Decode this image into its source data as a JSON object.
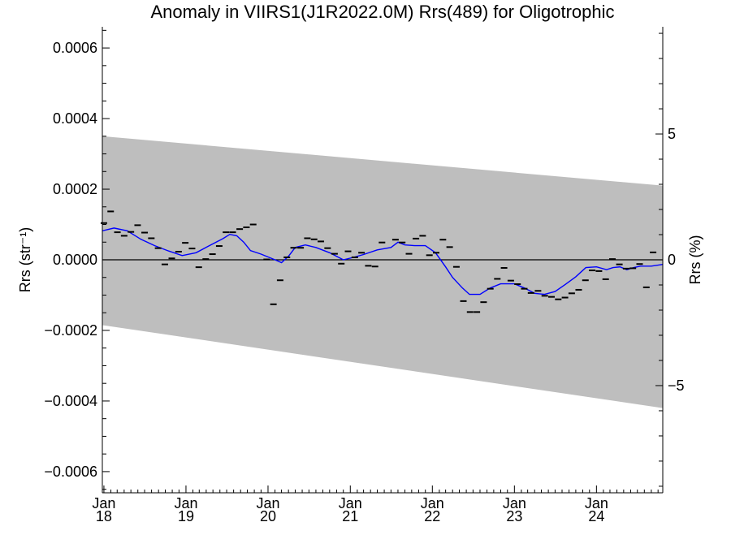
{
  "chart_data": {
    "type": "line",
    "title": "Anomaly in VIIRS1(J1R2022.0M) Rrs(489) for Oligotrophic",
    "ylabel": "Rrs (str⁻¹)",
    "ylabel_right": "Rrs (%)",
    "xlabel": "",
    "xlim": [
      "2017-12-25",
      "2024-10-22"
    ],
    "ylim": [
      -0.00066,
      0.00066
    ],
    "ylim_right": [
      -9.26,
      9.26
    ],
    "x_ticks": [
      {
        "date": "2018-01-01",
        "month": "Jan",
        "year": "18"
      },
      {
        "date": "2019-01-01",
        "month": "Jan",
        "year": "19"
      },
      {
        "date": "2020-01-01",
        "month": "Jan",
        "year": "20"
      },
      {
        "date": "2021-01-01",
        "month": "Jan",
        "year": "21"
      },
      {
        "date": "2022-01-01",
        "month": "Jan",
        "year": "22"
      },
      {
        "date": "2023-01-01",
        "month": "Jan",
        "year": "23"
      },
      {
        "date": "2024-01-01",
        "month": "Jan",
        "year": "24"
      }
    ],
    "y_ticks": [
      {
        "value": 0.0006,
        "label": "0.0006"
      },
      {
        "value": 0.0004,
        "label": "0.0004"
      },
      {
        "value": 0.0002,
        "label": "0.0002"
      },
      {
        "value": 0.0,
        "label": "0.0000"
      },
      {
        "value": -0.0002,
        "label": "−0.0002"
      },
      {
        "value": -0.0004,
        "label": "−0.0004"
      },
      {
        "value": -0.0006,
        "label": "−0.0006"
      }
    ],
    "y_ticks_right": [
      {
        "value": 5,
        "label": "5"
      },
      {
        "value": 0,
        "label": "0"
      },
      {
        "value": -5,
        "label": "−5"
      }
    ],
    "band": {
      "start": {
        "x": "2017-12-25",
        "upper": 0.00035,
        "lower": -0.000185
      },
      "end": {
        "x": "2024-10-22",
        "upper": 0.00021,
        "lower": -0.00042
      },
      "color": "#bebebe"
    },
    "zero_line": 0,
    "colors": {
      "band": "#bebebe",
      "smoothed": "#0000ff",
      "points": "#000000",
      "axes": "#000000"
    },
    "series": [
      {
        "style": "dash-markers",
        "x": [
          "2018-01-01",
          "2018-01-31",
          "2018-03-02",
          "2018-04-01",
          "2018-05-01",
          "2018-05-31",
          "2018-07-01",
          "2018-07-31",
          "2018-08-30",
          "2018-09-29",
          "2018-10-30",
          "2018-11-29",
          "2018-12-29",
          "2019-01-28",
          "2019-02-27",
          "2019-03-30",
          "2019-04-29",
          "2019-05-29",
          "2019-06-28",
          "2019-07-28",
          "2019-08-28",
          "2019-09-27",
          "2019-10-27",
          "2019-11-26",
          "2019-12-26",
          "2020-01-25",
          "2020-02-24",
          "2020-03-25",
          "2020-04-24",
          "2020-05-25",
          "2020-06-24",
          "2020-07-24",
          "2020-08-23",
          "2020-09-22",
          "2020-10-23",
          "2020-11-22",
          "2020-12-22",
          "2021-01-21",
          "2021-02-20",
          "2021-03-22",
          "2021-04-21",
          "2021-05-22",
          "2021-06-21",
          "2021-07-21",
          "2021-08-20",
          "2021-09-19",
          "2021-10-20",
          "2021-11-19",
          "2021-12-19",
          "2022-01-18",
          "2022-02-17",
          "2022-03-19",
          "2022-04-18",
          "2022-05-19",
          "2022-06-18",
          "2022-07-18",
          "2022-08-17",
          "2022-09-16",
          "2022-10-17",
          "2022-11-16",
          "2022-12-16",
          "2023-01-15",
          "2023-02-14",
          "2023-03-16",
          "2023-04-16",
          "2023-05-16",
          "2023-06-15",
          "2023-07-15",
          "2023-08-14",
          "2023-09-13",
          "2023-10-14",
          "2023-11-13",
          "2023-12-13",
          "2024-01-12",
          "2024-02-11",
          "2024-03-12",
          "2024-04-12",
          "2024-05-12",
          "2024-06-11",
          "2024-07-11",
          "2024-08-10",
          "2024-09-09",
          "2024-10-10"
        ],
        "values": [
          0.000104,
          0.000137,
          7.8e-05,
          6.8e-05,
          7.9e-05,
          9.8e-05,
          7.7e-05,
          6.1e-05,
          3.3e-05,
          -1.3e-05,
          4e-06,
          2.3e-05,
          4.8e-05,
          3.2e-05,
          -2.1e-05,
          2e-06,
          1.6e-05,
          3.9e-05,
          7.8e-05,
          7.8e-05,
          8.7e-05,
          9.2e-05,
          0.0001,
          null,
          1e-06,
          -0.000126,
          -5.8e-05,
          7e-06,
          3.4e-05,
          3.4e-05,
          6.1e-05,
          5.8e-05,
          5.2e-05,
          3.3e-05,
          1.7e-05,
          -1.1e-05,
          2.4e-05,
          7e-06,
          2e-05,
          -1.7e-05,
          -1.9e-05,
          4.9e-05,
          null,
          5.7e-05,
          4.9e-05,
          1.7e-05,
          6e-05,
          6.8e-05,
          1.3e-05,
          2e-05,
          5.7e-05,
          3.6e-05,
          -2e-05,
          -0.000117,
          -0.000148,
          -0.000148,
          -0.00012,
          -8.2e-05,
          -5.4e-05,
          -2.3e-05,
          -5.9e-05,
          -6.9e-05,
          -8.2e-05,
          -9.4e-05,
          -8.8e-05,
          -0.000102,
          -0.000105,
          -0.000112,
          -0.000107,
          -9.5e-05,
          -8.5e-05,
          -5.8e-05,
          -3e-05,
          -3.2e-05,
          -5.5e-05,
          2e-06,
          -1.3e-05,
          -2.5e-05,
          -2.4e-05,
          -1.2e-05,
          -7.8e-05,
          2.1e-05,
          null
        ]
      },
      {
        "style": "smoothed-line",
        "color": "#0000ff",
        "x": [
          "2017-12-25",
          "2018-02-15",
          "2018-04-15",
          "2018-06-15",
          "2018-08-15",
          "2018-10-15",
          "2018-12-15",
          "2019-02-15",
          "2019-04-15",
          "2019-06-15",
          "2019-07-15",
          "2019-08-15",
          "2019-09-15",
          "2019-10-15",
          "2019-12-01",
          "2020-02-01",
          "2020-03-01",
          "2020-04-01",
          "2020-05-01",
          "2020-06-15",
          "2020-08-01",
          "2020-10-01",
          "2020-12-01",
          "2021-01-15",
          "2021-03-01",
          "2021-05-01",
          "2021-07-01",
          "2021-08-01",
          "2021-09-01",
          "2021-10-15",
          "2021-12-01",
          "2022-01-15",
          "2022-03-01",
          "2022-04-01",
          "2022-05-15",
          "2022-06-15",
          "2022-08-01",
          "2022-09-15",
          "2022-11-01",
          "2023-01-01",
          "2023-02-15",
          "2023-04-01",
          "2023-05-15",
          "2023-07-01",
          "2023-08-15",
          "2023-10-01",
          "2023-11-15",
          "2024-01-01",
          "2024-02-15",
          "2024-03-15",
          "2024-04-15",
          "2024-05-15",
          "2024-06-15",
          "2024-07-15",
          "2024-09-01",
          "2024-10-22"
        ],
        "values": [
          8.2e-05,
          9e-05,
          8.2e-05,
          5.8e-05,
          4e-05,
          2.5e-05,
          1.2e-05,
          2e-05,
          4e-05,
          6e-05,
          7.2e-05,
          6.8e-05,
          5e-05,
          2.6e-05,
          1.6e-05,
          0.0,
          -8e-06,
          1e-05,
          3.5e-05,
          4.2e-05,
          3.5e-05,
          2e-05,
          0.0,
          7e-06,
          1.5e-05,
          2.8e-05,
          3.5e-05,
          5e-05,
          4.2e-05,
          4e-05,
          4e-05,
          2e-05,
          -2e-05,
          -5e-05,
          -8e-05,
          -9.8e-05,
          -9.8e-05,
          -8e-05,
          -6.8e-05,
          -6.8e-05,
          -8e-05,
          -9.5e-05,
          -9.8e-05,
          -9e-05,
          -7e-05,
          -4.8e-05,
          -2.2e-05,
          -2e-05,
          -2.8e-05,
          -2.2e-05,
          -2e-05,
          -2.8e-05,
          -2.2e-05,
          -1.8e-05,
          -1.8e-05,
          -1.3e-05
        ]
      }
    ]
  }
}
